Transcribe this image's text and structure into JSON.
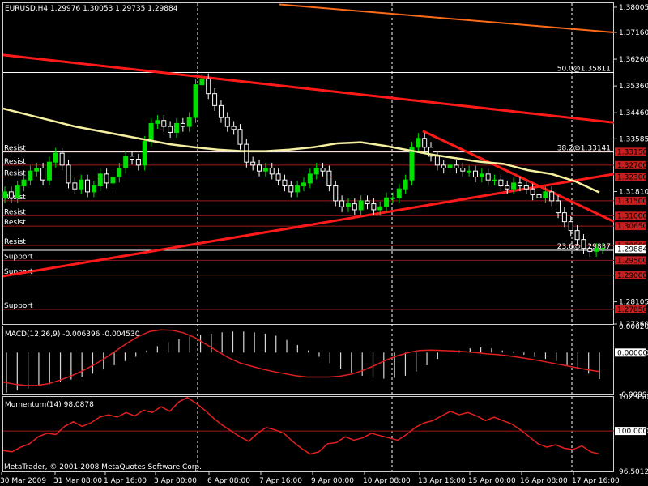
{
  "header": {
    "symbol_timeframe": "EURUSD,H4",
    "ohlc": "1.29976 1.30053 1.29735 1.29884"
  },
  "footer": {
    "copyright": "MetaTrader, © 2001-2008 MetaQuotes Software Corp."
  },
  "chart_data": [
    {
      "type": "candlestick",
      "panel": "price",
      "ylim": [
        1.2736,
        1.3814
      ],
      "price_ticks": [
        "1.38005",
        "1.37160",
        "1.36260",
        "1.35360",
        "1.34460",
        "1.33585",
        "1.31810",
        "1.28105",
        "1.27360"
      ],
      "current_price": "1.29884",
      "x_labels": [
        "30 Mar 2009",
        "31 Mar 08:00",
        "1 Apr 16:00",
        "3 Apr 00:00",
        "6 Apr 08:00",
        "7 Apr 16:00",
        "9 Apr 00:00",
        "10 Apr 08:00",
        "13 Apr 16:00",
        "15 Apr 00:00",
        "16 Apr 08:00",
        "17 Apr 16:00"
      ],
      "closes": [
        1.318,
        1.316,
        1.32,
        1.322,
        1.325,
        1.326,
        1.322,
        1.328,
        1.331,
        1.327,
        1.321,
        1.319,
        1.322,
        1.318,
        1.32,
        1.324,
        1.321,
        1.323,
        1.326,
        1.33,
        1.329,
        1.327,
        1.335,
        1.341,
        1.342,
        1.34,
        1.338,
        1.341,
        1.34,
        1.343,
        1.354,
        1.356,
        1.351,
        1.347,
        1.343,
        1.34,
        1.339,
        1.334,
        1.328,
        1.327,
        1.325,
        1.326,
        1.324,
        1.322,
        1.32,
        1.318,
        1.32,
        1.321,
        1.324,
        1.326,
        1.325,
        1.32,
        1.315,
        1.313,
        1.314,
        1.312,
        1.315,
        1.314,
        1.312,
        1.313,
        1.316,
        1.316,
        1.319,
        1.322,
        1.333,
        1.336,
        1.333,
        1.33,
        1.327,
        1.326,
        1.327,
        1.326,
        1.325,
        1.325,
        1.323,
        1.324,
        1.322,
        1.322,
        1.32,
        1.319,
        1.321,
        1.32,
        1.319,
        1.317,
        1.316,
        1.318,
        1.315,
        1.311,
        1.308,
        1.305,
        1.302,
        1.299,
        1.298,
        1.299,
        1.299
      ],
      "ma_line": [
        1.346,
        1.344,
        1.342,
        1.34,
        1.3385,
        1.337,
        1.3355,
        1.334,
        1.333,
        1.3322,
        1.3317,
        1.3317,
        1.3322,
        1.333,
        1.3343,
        1.3347,
        1.3335,
        1.332,
        1.3305,
        1.3293,
        1.3281,
        1.3274,
        1.3253,
        1.324,
        1.3215,
        1.3178
      ],
      "levels": [
        {
          "label": "Resist",
          "value": "1.33150",
          "kind": "resist"
        },
        {
          "label": "Resist",
          "value": "1.32700",
          "kind": "resist"
        },
        {
          "label": "Resist",
          "value": "1.32300",
          "kind": "resist"
        },
        {
          "label": "Resist",
          "value": "1.31500",
          "kind": "resist"
        },
        {
          "label": "Resist",
          "value": "1.31000",
          "kind": "resist"
        },
        {
          "label": "Resist",
          "value": "1.30650",
          "kind": "resist"
        },
        {
          "label": "Resist",
          "value": "1.30000",
          "kind": "resist"
        },
        {
          "label": "Support",
          "value": "1.29500",
          "kind": "support"
        },
        {
          "label": "Support",
          "value": "1.29000",
          "kind": "support"
        },
        {
          "label": "Support",
          "value": "1.27850",
          "kind": "support"
        }
      ],
      "fibo": [
        {
          "label": "50.0@1.35811"
        },
        {
          "label": "38.2@1.33141"
        },
        {
          "label": "23.6@1.29837"
        }
      ]
    },
    {
      "type": "bar",
      "panel": "macd",
      "label": "MACD(12,26,9) -0.006396 -0.004530",
      "ticks": [
        "0.006206",
        "0.00000",
        "-0.009936"
      ],
      "histogram": [
        -0.0095,
        -0.009,
        -0.0085,
        -0.008,
        -0.0075,
        -0.007,
        -0.0064,
        -0.0058,
        -0.005,
        -0.004,
        -0.003,
        -0.002,
        -0.001,
        0.0005,
        0.0015,
        0.0025,
        0.0032,
        0.0038,
        0.0042,
        0.0045,
        0.0048,
        0.005,
        0.005,
        0.0048,
        0.0045,
        0.004,
        0.003,
        0.0018,
        0.0005,
        -0.001,
        -0.0025,
        -0.0038,
        -0.0048,
        -0.0055,
        -0.006,
        -0.0062,
        -0.006,
        -0.0055,
        -0.0045,
        -0.003,
        -0.0015,
        0.0,
        0.0005,
        0.001,
        0.0012,
        0.001,
        0.0005,
        0.0002,
        -0.0005,
        -0.001,
        -0.0015,
        -0.002,
        -0.003,
        -0.004,
        -0.005,
        -0.0063
      ],
      "signal": [
        -0.007,
        -0.0075,
        -0.0078,
        -0.0078,
        -0.0074,
        -0.0066,
        -0.0056,
        -0.0044,
        -0.003,
        -0.0014,
        0.0004,
        0.0022,
        0.0038,
        0.005,
        0.0054,
        0.0053,
        0.0047,
        0.0036,
        0.002,
        0.0004,
        -0.0012,
        -0.0024,
        -0.0032,
        -0.0039,
        -0.0045,
        -0.005,
        -0.0055,
        -0.0058,
        -0.0058,
        -0.0058,
        -0.0056,
        -0.0051,
        -0.0042,
        -0.0031,
        -0.0018,
        -0.0008,
        0.0,
        0.0005,
        0.0006,
        0.0005,
        0.0004,
        0.0002,
        0.0,
        -0.0003,
        -0.0005,
        -0.0008,
        -0.0012,
        -0.0016,
        -0.0021,
        -0.0026,
        -0.0031,
        -0.0036,
        -0.0041,
        -0.0045
      ]
    },
    {
      "type": "line",
      "panel": "momentum",
      "label": "Momentum(14) 98.0878",
      "ticks": [
        "102.9505",
        "100.0000",
        "96.5012"
      ],
      "values": [
        98.3,
        98.2,
        98.6,
        98.9,
        99.5,
        99.8,
        99.7,
        100.4,
        100.8,
        100.4,
        100.7,
        101.2,
        101.4,
        101.2,
        101.6,
        101.3,
        101.8,
        101.6,
        102.1,
        101.7,
        102.5,
        102.9,
        102.4,
        101.8,
        101.1,
        100.5,
        100.0,
        99.5,
        99.1,
        99.8,
        100.3,
        100.1,
        99.8,
        99.1,
        98.5,
        98.0,
        98.2,
        98.9,
        99.0,
        99.5,
        99.2,
        99.4,
        99.8,
        99.6,
        99.4,
        99.2,
        99.7,
        100.3,
        100.7,
        100.9,
        101.3,
        101.7,
        101.4,
        101.6,
        101.3,
        100.9,
        101.2,
        100.9,
        100.6,
        100.1,
        99.5,
        98.9,
        98.6,
        98.8,
        98.5,
        98.4,
        98.7,
        98.2,
        98.0
      ]
    }
  ]
}
